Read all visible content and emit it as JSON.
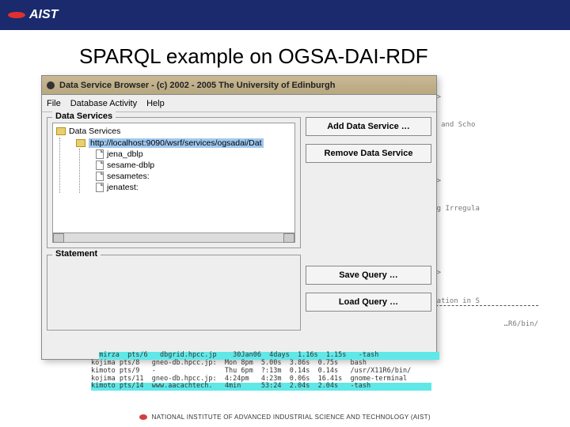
{
  "header": {
    "logo_text": "AIST"
  },
  "slide_title": "SPARQL example on OGSA-DAI-RDF",
  "app": {
    "window_title": "Data Service Browser - (c) 2002 - 2005 The University of Edinburgh",
    "menu": [
      "File",
      "Database Activity",
      "Help"
    ],
    "group_data_services": "Data Services",
    "tree": {
      "root": "Data Services",
      "url": "http://localhost:9090/wsrf/services/ogsadai/Dat",
      "items": [
        "jena_dblp",
        "sesame-dblp",
        "sesametes:",
        "jenatest:"
      ]
    },
    "group_statement": "Statement",
    "buttons": {
      "add": "Add Data Service …",
      "remove": "Remove Data Service",
      "save": "Save Query …",
      "load": "Load Query …"
    }
  },
  "bg_snippets": {
    "l1": "tle'>",
    "l2": "logy and Scho",
    "l3": "tle'>",
    "l4": "mming Irregula",
    "l5": "tle'>",
    "l6": "mentation in S",
    "l7": "…R6/bin/"
  },
  "term": {
    "rows": [
      [
        "mirza",
        "pts/6",
        "dbgrid.hpcc.jp",
        "30Jan06",
        "4days",
        "1.16s",
        "1.15s",
        "-tash"
      ],
      [
        "kojima",
        "pts/8",
        "gneo-db.hpcc.jp:",
        "Mon 8pm",
        "5.00s",
        "3.86s",
        "0.75s",
        "bash"
      ],
      [
        "kimoto",
        "pts/9",
        "-",
        "Thu 6pm",
        "?:13m",
        "0.14s",
        "0.14s",
        "/usr/X11R6/bin/"
      ],
      [
        "kojima",
        "pts/11",
        "gneo-db.hpcc.jp:",
        "4:24pm",
        "4:23m",
        "0.06s",
        "16.41s",
        "gnome-terminal"
      ],
      [
        "kimoto",
        "pts/14",
        "www.aacachtech.",
        "4min",
        "53:24",
        "2.04s",
        "2.04s",
        "-tash"
      ]
    ]
  },
  "footer": "NATIONAL INSTITUTE OF ADVANCED INDUSTRIAL SCIENCE AND TECHNOLOGY (AIST)"
}
